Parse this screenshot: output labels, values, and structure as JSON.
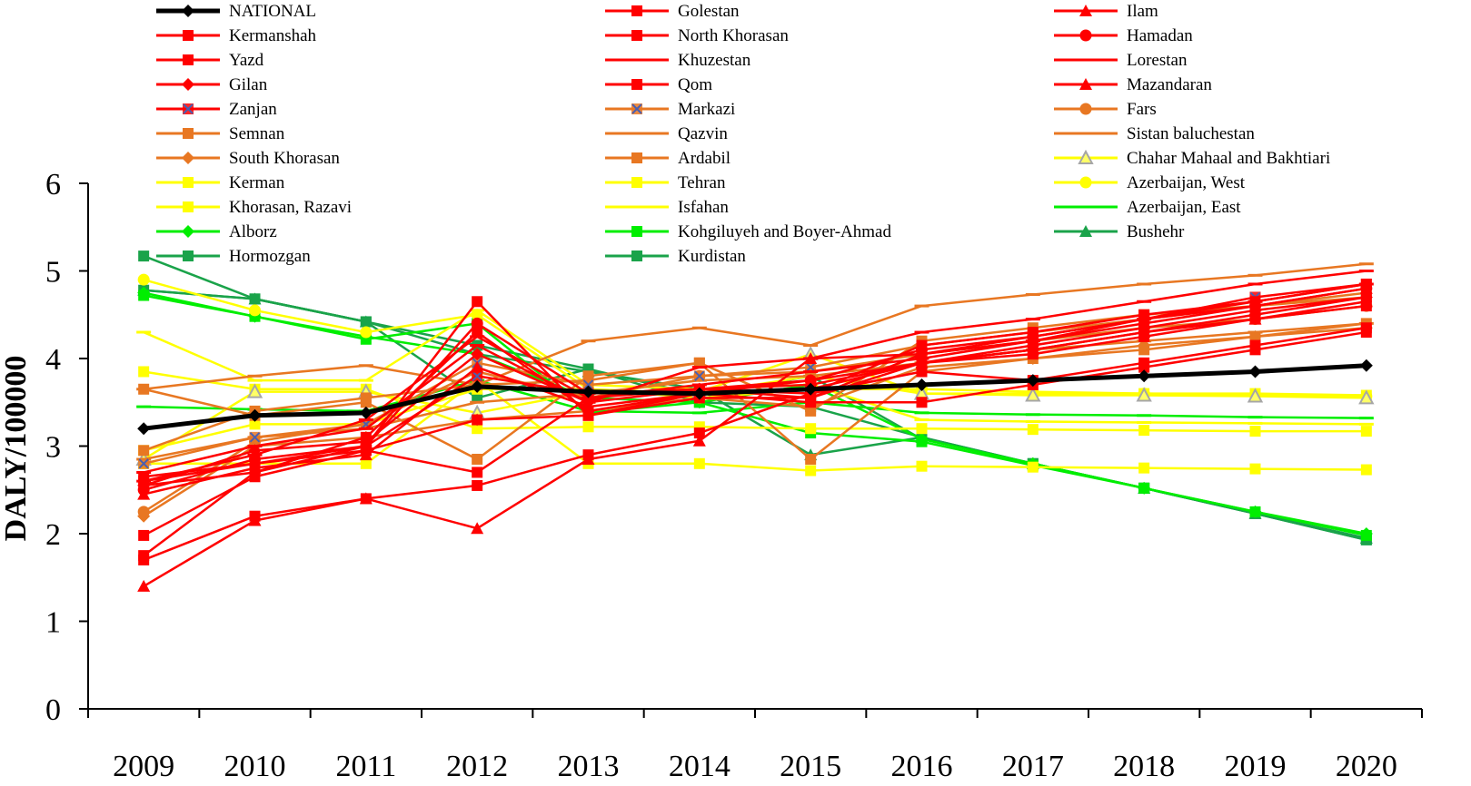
{
  "chart_data": {
    "type": "line",
    "title": "",
    "xlabel": "",
    "ylabel": "DALY/100000",
    "ylim": [
      0,
      6
    ],
    "yticks": [
      0,
      1,
      2,
      3,
      4,
      5,
      6
    ],
    "categories": [
      "2009",
      "2010",
      "2011",
      "2012",
      "2013",
      "2014",
      "2015",
      "2016",
      "2017",
      "2018",
      "2019",
      "2020"
    ],
    "legend_position": "top",
    "series": [
      {
        "name": "NATIONAL",
        "color": "#000000",
        "marker": "diamond",
        "width": 5,
        "values": [
          3.2,
          3.35,
          3.38,
          3.68,
          3.62,
          3.6,
          3.65,
          3.7,
          3.75,
          3.8,
          3.85,
          3.92
        ]
      },
      {
        "name": "Golestan",
        "color": "#ff0000",
        "marker": "square",
        "values": [
          2.6,
          2.8,
          3.0,
          4.65,
          3.35,
          3.6,
          3.65,
          3.95,
          4.15,
          4.35,
          4.55,
          4.7
        ]
      },
      {
        "name": "Ilam",
        "color": "#ff0000",
        "marker": "triangle",
        "values": [
          1.4,
          2.15,
          2.4,
          2.06,
          2.85,
          3.06,
          4.0,
          4.05,
          4.2,
          4.4,
          4.6,
          4.8
        ]
      },
      {
        "name": "Kermanshah",
        "color": "#ff0000",
        "marker": "square",
        "values": [
          1.7,
          2.2,
          2.4,
          2.55,
          2.9,
          3.15,
          3.6,
          3.85,
          3.75,
          3.95,
          4.15,
          4.35
        ]
      },
      {
        "name": "North Khorasan",
        "color": "#ff0000",
        "marker": "square",
        "values": [
          1.98,
          2.65,
          2.95,
          2.7,
          3.55,
          3.65,
          3.6,
          4.15,
          4.3,
          4.5,
          4.65,
          4.85
        ]
      },
      {
        "name": "Hamadan",
        "color": "#ff0000",
        "marker": "circle",
        "values": [
          2.5,
          2.85,
          3.0,
          4.4,
          3.6,
          3.65,
          3.75,
          4.1,
          4.25,
          4.45,
          4.6,
          4.8
        ]
      },
      {
        "name": "Yazd",
        "color": "#ff0000",
        "marker": "square",
        "values": [
          1.75,
          2.7,
          3.1,
          4.3,
          3.4,
          3.6,
          3.5,
          3.5,
          3.7,
          3.9,
          4.1,
          4.3
        ]
      },
      {
        "name": "Khuzestan",
        "color": "#ff0000",
        "marker": "dash",
        "values": [
          2.6,
          2.9,
          3.3,
          4.25,
          3.55,
          3.7,
          3.85,
          4.0,
          4.2,
          4.45,
          4.65,
          4.85
        ]
      },
      {
        "name": "Lorestan",
        "color": "#ff0000",
        "marker": "dash",
        "values": [
          2.7,
          3.0,
          3.2,
          4.15,
          3.5,
          3.9,
          4.0,
          4.3,
          4.45,
          4.65,
          4.85,
          5.0
        ]
      },
      {
        "name": "Gilan",
        "color": "#ff0000",
        "marker": "diamond",
        "values": [
          2.55,
          2.95,
          3.05,
          4.05,
          3.5,
          3.65,
          3.7,
          3.95,
          4.1,
          4.3,
          4.5,
          4.7
        ]
      },
      {
        "name": "Qom",
        "color": "#ff0000",
        "marker": "square",
        "values": [
          2.65,
          2.8,
          2.95,
          3.3,
          3.35,
          3.55,
          3.55,
          3.95,
          4.05,
          4.25,
          4.45,
          4.6
        ]
      },
      {
        "name": "Mazandaran",
        "color": "#ff0000",
        "marker": "triangle",
        "values": [
          2.45,
          2.75,
          2.9,
          3.9,
          3.45,
          3.6,
          3.75,
          3.95,
          4.1,
          4.3,
          4.45,
          4.65
        ]
      },
      {
        "name": "Zanjan",
        "color": "#ff0000",
        "marker": "x-square",
        "values": [
          2.55,
          2.7,
          3.0,
          3.8,
          3.6,
          3.65,
          3.55,
          4.05,
          4.25,
          4.45,
          4.7,
          4.85
        ]
      },
      {
        "name": "Markazi",
        "color": "#e87722",
        "marker": "x-square",
        "values": [
          2.8,
          3.1,
          3.25,
          3.95,
          3.7,
          3.8,
          3.9,
          4.15,
          4.3,
          4.45,
          4.6,
          4.75
        ]
      },
      {
        "name": "Fars",
        "color": "#e87722",
        "marker": "circle",
        "values": [
          2.25,
          3.05,
          3.25,
          3.85,
          3.55,
          3.8,
          3.85,
          4.05,
          4.2,
          4.35,
          4.45,
          4.6
        ]
      },
      {
        "name": "Semnan",
        "color": "#e87722",
        "marker": "square",
        "values": [
          2.95,
          3.4,
          3.55,
          3.7,
          3.75,
          3.95,
          3.4,
          4.2,
          4.35,
          4.5,
          4.6,
          4.7
        ]
      },
      {
        "name": "Qazvin",
        "color": "#e87722",
        "marker": "dash",
        "values": [
          3.65,
          3.8,
          3.92,
          3.7,
          4.2,
          4.35,
          4.15,
          4.6,
          4.73,
          4.85,
          4.95,
          5.08
        ]
      },
      {
        "name": "Sistan baluchestan",
        "color": "#e87722",
        "marker": "dash",
        "values": [
          2.85,
          3.1,
          3.2,
          3.5,
          3.6,
          3.75,
          3.8,
          3.95,
          4.1,
          4.2,
          4.3,
          4.4
        ]
      },
      {
        "name": "South Khorasan",
        "color": "#e87722",
        "marker": "diamond",
        "values": [
          2.2,
          3.0,
          3.1,
          3.3,
          3.4,
          3.55,
          3.45,
          3.9,
          4.0,
          4.15,
          4.25,
          4.35
        ]
      },
      {
        "name": "Ardabil",
        "color": "#e87722",
        "marker": "square",
        "values": [
          3.65,
          3.35,
          3.5,
          2.85,
          3.8,
          3.95,
          2.85,
          3.85,
          4.0,
          4.1,
          4.25,
          4.4
        ]
      },
      {
        "name": "Chahar Mahaal and Bakhtiari",
        "color": "#ffff00",
        "marker": "triangle-hollow",
        "values": [
          2.85,
          3.62,
          3.62,
          3.38,
          3.62,
          3.62,
          4.05,
          3.6,
          3.58,
          3.58,
          3.57,
          3.55
        ]
      },
      {
        "name": "Kerman",
        "color": "#ffff00",
        "marker": "square",
        "values": [
          2.95,
          3.25,
          3.25,
          3.65,
          3.65,
          3.6,
          3.8,
          3.6,
          3.6,
          3.6,
          3.6,
          3.58
        ]
      },
      {
        "name": "Tehran",
        "color": "#ffff00",
        "marker": "square",
        "values": [
          2.8,
          2.8,
          2.8,
          3.75,
          2.8,
          2.8,
          2.72,
          2.77,
          2.76,
          2.75,
          2.74,
          2.73
        ]
      },
      {
        "name": "Azerbaijan, West",
        "color": "#ffff00",
        "marker": "circle",
        "values": [
          4.9,
          4.55,
          4.3,
          4.5,
          3.65,
          3.55,
          3.65,
          3.65,
          3.62,
          3.6,
          3.58,
          3.57
        ]
      },
      {
        "name": "Khorasan, Razavi",
        "color": "#ffff00",
        "marker": "square",
        "values": [
          3.85,
          3.65,
          3.65,
          3.2,
          3.22,
          3.22,
          3.2,
          3.2,
          3.19,
          3.18,
          3.17,
          3.17
        ]
      },
      {
        "name": "Isfahan",
        "color": "#ffff00",
        "marker": "dash",
        "values": [
          4.3,
          3.75,
          3.75,
          4.55,
          3.7,
          3.65,
          3.7,
          3.3,
          3.28,
          3.27,
          3.26,
          3.25
        ]
      },
      {
        "name": "Azerbaijan, East",
        "color": "#00ee00",
        "marker": "dash",
        "values": [
          3.45,
          3.42,
          3.4,
          3.75,
          3.4,
          3.38,
          3.5,
          3.38,
          3.36,
          3.35,
          3.33,
          3.32
        ]
      },
      {
        "name": "Alborz",
        "color": "#00ee00",
        "marker": "diamond",
        "values": [
          4.75,
          4.48,
          4.25,
          4.05,
          3.55,
          3.5,
          3.7,
          3.08,
          2.8,
          2.52,
          2.25,
          2.0
        ]
      },
      {
        "name": "Kohgiluyeh and Boyer-Ahmad",
        "color": "#00ee00",
        "marker": "square",
        "values": [
          4.72,
          4.48,
          4.22,
          4.4,
          3.38,
          3.5,
          3.15,
          3.05,
          2.78,
          2.52,
          2.25,
          1.98
        ]
      },
      {
        "name": "Bushehr",
        "color": "#1aa34a",
        "marker": "triangle",
        "values": [
          4.78,
          4.68,
          4.42,
          4.05,
          3.85,
          3.65,
          2.9,
          3.1,
          2.8,
          2.52,
          2.23,
          1.95
        ]
      },
      {
        "name": "Hormozgan",
        "color": "#1aa34a",
        "marker": "square",
        "values": [
          5.17,
          4.68,
          4.42,
          3.55,
          3.88,
          3.58,
          3.8,
          3.08,
          2.8,
          2.52,
          2.23,
          1.93
        ]
      },
      {
        "name": "Kurdistan",
        "color": "#1aa34a",
        "marker": "square",
        "values": [
          4.78,
          4.68,
          4.42,
          4.15,
          3.88,
          3.5,
          3.45,
          3.1,
          2.8,
          2.52,
          2.23,
          1.93
        ]
      }
    ]
  }
}
